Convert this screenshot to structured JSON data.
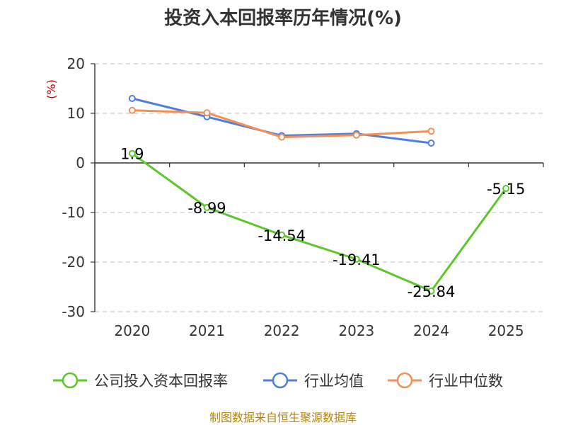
{
  "chart_data": {
    "type": "line",
    "title": "投资入本回报率历年情况(%)",
    "ylabel": "(%)",
    "categories": [
      "2020",
      "2021",
      "2022",
      "2023",
      "2024",
      "2025"
    ],
    "ylim": [
      -30,
      20
    ],
    "yticks": [
      20,
      10,
      0,
      -10,
      -20,
      -30
    ],
    "grid": true,
    "legend_position": "bottom",
    "series": [
      {
        "name": "公司投入资本回报率",
        "color": "#5ec52c",
        "values": [
          1.9,
          -8.99,
          -14.54,
          -19.41,
          -25.84,
          -5.15
        ],
        "labels": [
          "1.9",
          "-8.99",
          "-14.54",
          "-19.41",
          "-25.84",
          "-5.15"
        ]
      },
      {
        "name": "行业均值",
        "color": "#4f7fdc",
        "values": [
          13.0,
          9.3,
          5.5,
          5.9,
          4.0,
          null
        ]
      },
      {
        "name": "行业中位数",
        "color": "#f2905a",
        "values": [
          10.6,
          10.1,
          5.2,
          5.6,
          6.4,
          null
        ]
      }
    ]
  },
  "source": "制图数据来自恒生聚源数据库"
}
